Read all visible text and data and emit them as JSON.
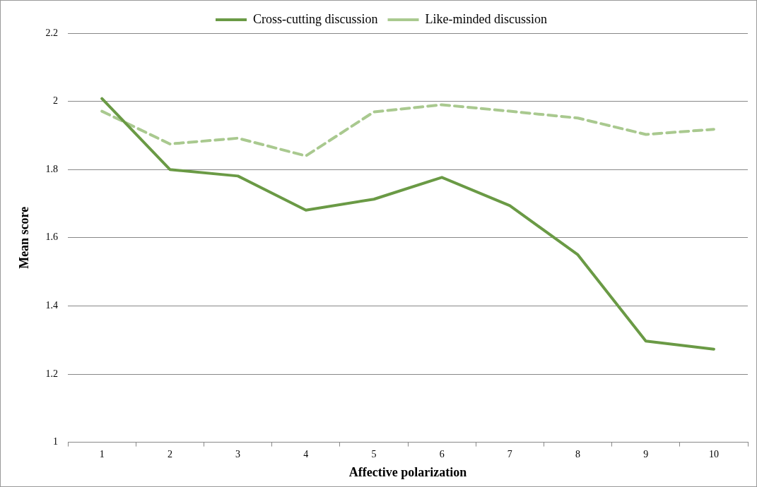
{
  "chart_data": {
    "type": "line",
    "xlabel": "Affective polarization",
    "ylabel": "Mean score",
    "categories": [
      "1",
      "2",
      "3",
      "4",
      "5",
      "6",
      "7",
      "8",
      "9",
      "10"
    ],
    "series": [
      {
        "name": "Cross-cutting discussion",
        "color": "#6a9a45",
        "line_style": "solid",
        "values": [
          2.008,
          1.8,
          1.781,
          1.681,
          1.713,
          1.777,
          1.694,
          1.55,
          1.297,
          1.273
        ]
      },
      {
        "name": "Like-minded discussion",
        "color": "#a9c98f",
        "line_style": "dashed",
        "values": [
          1.971,
          1.875,
          1.892,
          1.84,
          1.969,
          1.99,
          1.971,
          1.951,
          1.903,
          1.918
        ]
      }
    ],
    "ylim": [
      1,
      2.2
    ],
    "yticks": [
      1,
      1.2,
      1.4,
      1.6,
      1.8,
      2,
      2.2
    ],
    "grid": "y",
    "legend": "top",
    "marker": "none"
  }
}
